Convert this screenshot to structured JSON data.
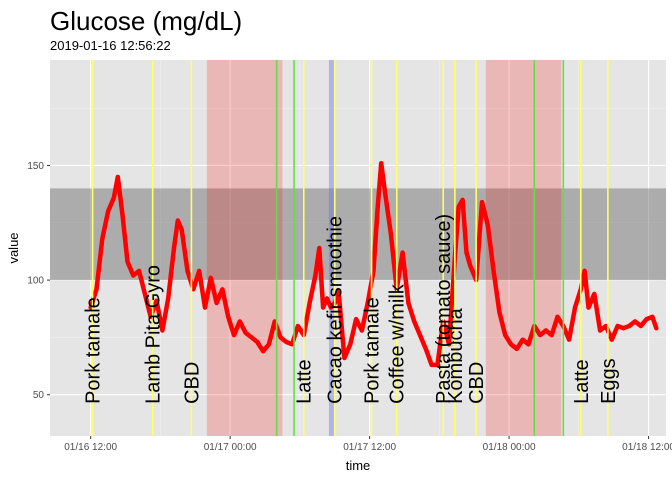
{
  "chart_data": {
    "type": "line",
    "title": "Glucose (mg/dL)",
    "subtitle": "2019-01-16 12:56:22",
    "xlabel": "time",
    "ylabel": "value",
    "xlim": [
      "2019-01-16 08:30",
      "2019-01-18 13:30"
    ],
    "ylim": [
      32,
      196
    ],
    "x_ticks": [
      {
        "t": "2019-01-16 12:00",
        "label": "01/16 12:00"
      },
      {
        "t": "2019-01-17 00:00",
        "label": "01/17 00:00"
      },
      {
        "t": "2019-01-17 12:00",
        "label": "01/17 12:00"
      },
      {
        "t": "2019-01-18 00:00",
        "label": "01/18 00:00"
      },
      {
        "t": "2019-01-18 12:00",
        "label": "01/18 12:00"
      }
    ],
    "y_ticks": [
      50,
      100,
      150
    ],
    "grid": true,
    "target_band": {
      "ymin": 100,
      "ymax": 140,
      "color": "#666666"
    },
    "sleep_periods": [
      {
        "start": "2019-01-16 22:00",
        "end": "2019-01-17 04:30",
        "color": "#ff0000"
      },
      {
        "start": "2019-01-17 22:00",
        "end": "2019-01-18 04:30",
        "color": "#ff0000"
      }
    ],
    "exercise_period": {
      "start": "2019-01-17 08:30",
      "end": "2019-01-17 08:55",
      "color": "#6666ff"
    },
    "green_lines": [
      "2019-01-17 04:00",
      "2019-01-17 05:30",
      "2019-01-18 02:10",
      "2019-01-18 04:40"
    ],
    "events": [
      {
        "t": "2019-01-16 12:10",
        "label": "Pork tamale"
      },
      {
        "t": "2019-01-16 17:20",
        "label": "Lamb Pita Gyro"
      },
      {
        "t": "2019-01-16 20:40",
        "label": "CBD"
      },
      {
        "t": "2019-01-17 06:20",
        "label": "Latte"
      },
      {
        "t": "2019-01-17 09:00",
        "label": "Cacao kefir smoothie"
      },
      {
        "t": "2019-01-17 12:10",
        "label": "Pork tamale"
      },
      {
        "t": "2019-01-17 14:20",
        "label": "Coffee w/milk"
      },
      {
        "t": "2019-01-17 18:20",
        "label": "Pasta (tomato sauce)"
      },
      {
        "t": "2019-01-17 19:20",
        "label": "Kombucha"
      },
      {
        "t": "2019-01-17 21:10",
        "label": "CBD"
      },
      {
        "t": "2019-01-18 06:10",
        "label": "Latte"
      },
      {
        "t": "2019-01-18 08:30",
        "label": "Eggs"
      }
    ],
    "series": [
      {
        "color": "#ff0000",
        "points": [
          [
            "2019-01-16 12:00",
            88
          ],
          [
            "2019-01-16 12:30",
            96
          ],
          [
            "2019-01-16 13:00",
            118
          ],
          [
            "2019-01-16 13:30",
            130
          ],
          [
            "2019-01-16 14:00",
            136
          ],
          [
            "2019-01-16 14:20",
            145
          ],
          [
            "2019-01-16 14:45",
            128
          ],
          [
            "2019-01-16 15:10",
            108
          ],
          [
            "2019-01-16 15:40",
            102
          ],
          [
            "2019-01-16 16:10",
            104
          ],
          [
            "2019-01-16 16:40",
            94
          ],
          [
            "2019-01-16 17:10",
            84
          ],
          [
            "2019-01-16 17:40",
            91
          ],
          [
            "2019-01-16 18:10",
            78
          ],
          [
            "2019-01-16 18:40",
            92
          ],
          [
            "2019-01-16 19:10",
            114
          ],
          [
            "2019-01-16 19:30",
            126
          ],
          [
            "2019-01-16 19:50",
            122
          ],
          [
            "2019-01-16 20:20",
            104
          ],
          [
            "2019-01-16 20:50",
            96
          ],
          [
            "2019-01-16 21:20",
            104
          ],
          [
            "2019-01-16 21:50",
            88
          ],
          [
            "2019-01-16 22:20",
            101
          ],
          [
            "2019-01-16 22:50",
            90
          ],
          [
            "2019-01-16 23:20",
            96
          ],
          [
            "2019-01-16 23:50",
            84
          ],
          [
            "2019-01-17 00:20",
            76
          ],
          [
            "2019-01-17 00:50",
            82
          ],
          [
            "2019-01-17 01:20",
            77
          ],
          [
            "2019-01-17 01:50",
            75
          ],
          [
            "2019-01-17 02:20",
            73
          ],
          [
            "2019-01-17 02:50",
            69
          ],
          [
            "2019-01-17 03:20",
            72
          ],
          [
            "2019-01-17 03:50",
            82
          ],
          [
            "2019-01-17 04:20",
            75
          ],
          [
            "2019-01-17 04:50",
            73
          ],
          [
            "2019-01-17 05:20",
            72
          ],
          [
            "2019-01-17 05:50",
            80
          ],
          [
            "2019-01-17 06:20",
            76
          ],
          [
            "2019-01-17 06:50",
            90
          ],
          [
            "2019-01-17 07:20",
            102
          ],
          [
            "2019-01-17 07:40",
            114
          ],
          [
            "2019-01-17 08:00",
            88
          ],
          [
            "2019-01-17 08:20",
            92
          ],
          [
            "2019-01-17 08:40",
            88
          ],
          [
            "2019-01-17 09:00",
            90
          ],
          [
            "2019-01-17 09:20",
            95
          ],
          [
            "2019-01-17 09:50",
            66
          ],
          [
            "2019-01-17 10:20",
            72
          ],
          [
            "2019-01-17 10:50",
            83
          ],
          [
            "2019-01-17 11:20",
            78
          ],
          [
            "2019-01-17 11:50",
            90
          ],
          [
            "2019-01-17 12:20",
            104
          ],
          [
            "2019-01-17 12:40",
            130
          ],
          [
            "2019-01-17 13:00",
            151
          ],
          [
            "2019-01-17 13:20",
            138
          ],
          [
            "2019-01-17 13:50",
            120
          ],
          [
            "2019-01-17 14:20",
            96
          ],
          [
            "2019-01-17 14:50",
            112
          ],
          [
            "2019-01-17 15:20",
            90
          ],
          [
            "2019-01-17 15:50",
            82
          ],
          [
            "2019-01-17 16:20",
            76
          ],
          [
            "2019-01-17 16:50",
            70
          ],
          [
            "2019-01-17 17:20",
            63
          ],
          [
            "2019-01-17 17:50",
            63
          ],
          [
            "2019-01-17 18:20",
            82
          ],
          [
            "2019-01-17 18:50",
            72
          ],
          [
            "2019-01-17 19:20",
            110
          ],
          [
            "2019-01-17 19:40",
            132
          ],
          [
            "2019-01-17 20:00",
            135
          ],
          [
            "2019-01-17 20:20",
            112
          ],
          [
            "2019-01-17 20:40",
            106
          ],
          [
            "2019-01-17 21:10",
            100
          ],
          [
            "2019-01-17 21:40",
            134
          ],
          [
            "2019-01-17 22:10",
            124
          ],
          [
            "2019-01-17 22:40",
            104
          ],
          [
            "2019-01-17 23:10",
            86
          ],
          [
            "2019-01-17 23:40",
            76
          ],
          [
            "2019-01-18 00:10",
            72
          ],
          [
            "2019-01-18 00:40",
            70
          ],
          [
            "2019-01-18 01:10",
            74
          ],
          [
            "2019-01-18 01:40",
            72
          ],
          [
            "2019-01-18 02:10",
            80
          ],
          [
            "2019-01-18 02:40",
            76
          ],
          [
            "2019-01-18 03:10",
            78
          ],
          [
            "2019-01-18 03:40",
            76
          ],
          [
            "2019-01-18 04:10",
            84
          ],
          [
            "2019-01-18 04:40",
            80
          ],
          [
            "2019-01-18 05:10",
            74
          ],
          [
            "2019-01-18 05:40",
            88
          ],
          [
            "2019-01-18 06:10",
            96
          ],
          [
            "2019-01-18 06:30",
            104
          ],
          [
            "2019-01-18 06:50",
            88
          ],
          [
            "2019-01-18 07:20",
            94
          ],
          [
            "2019-01-18 07:50",
            78
          ],
          [
            "2019-01-18 08:20",
            80
          ],
          [
            "2019-01-18 08:50",
            74
          ],
          [
            "2019-01-18 09:20",
            80
          ],
          [
            "2019-01-18 09:50",
            79
          ],
          [
            "2019-01-18 10:20",
            80
          ],
          [
            "2019-01-18 10:50",
            82
          ],
          [
            "2019-01-18 11:20",
            80
          ],
          [
            "2019-01-18 11:50",
            83
          ],
          [
            "2019-01-18 12:20",
            84
          ],
          [
            "2019-01-18 12:40",
            79
          ]
        ]
      }
    ]
  }
}
